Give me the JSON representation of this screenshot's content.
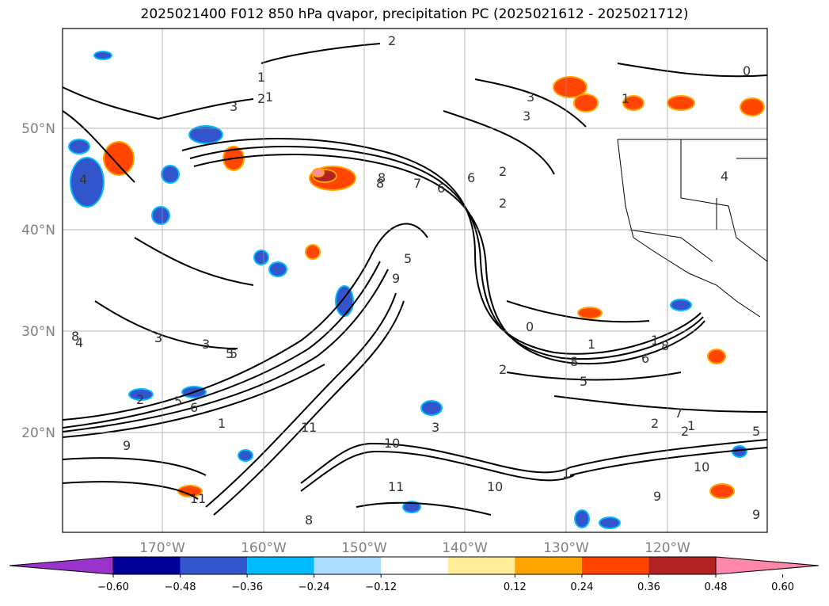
{
  "title": "2025021400 F012 850 hPa qvapor, precipitation PC (2025021612 - 2025021712)",
  "map": {
    "lat_labels": [
      "50°N",
      "40°N",
      "30°N",
      "20°N"
    ],
    "lon_labels": [
      "170°W",
      "160°W",
      "150°W",
      "140°W",
      "130°W",
      "120°W"
    ],
    "contour_labels": [
      "2",
      "1",
      "1",
      "2",
      "3",
      "0",
      "3",
      "1",
      "2",
      "2",
      "3",
      "4",
      "5",
      "6",
      "7",
      "8",
      "8",
      "9",
      "5",
      "6",
      "2",
      "5",
      "2",
      "3",
      "3",
      "4",
      "5",
      "3",
      "2",
      "1",
      "1",
      "0",
      "1",
      "8",
      "8",
      "6",
      "5",
      "5",
      "7",
      "3",
      "2",
      "1",
      "1",
      "9",
      "11",
      "10",
      "10",
      "11",
      "9",
      "8",
      "10",
      "11",
      "9",
      "8",
      "6",
      "4"
    ]
  },
  "colorbar": {
    "tick_labels": [
      "−0.60",
      "−0.48",
      "−0.36",
      "−0.24",
      "−0.12",
      "0.12",
      "0.24",
      "0.36",
      "0.48",
      "0.60"
    ],
    "colors": [
      "#9933cc",
      "#000099",
      "#3355cc",
      "#00bbff",
      "#aaddff",
      "#ffffff",
      "#ffee99",
      "#ffa500",
      "#ff4500",
      "#b22222",
      "#ff88aa"
    ]
  },
  "chart_data": {
    "type": "heatmap",
    "title": "2025021400 F012 850 hPa qvapor, precipitation PC (2025021612 - 2025021712)",
    "variable_contours": "850 hPa qvapor",
    "variable_fill": "precipitation PC",
    "lon_ticks": [
      "170°W",
      "160°W",
      "150°W",
      "140°W",
      "130°W",
      "120°W"
    ],
    "lat_ticks": [
      "50°N",
      "40°N",
      "30°N",
      "20°N"
    ],
    "colorbar_levels": [
      -0.6,
      -0.48,
      -0.36,
      -0.24,
      -0.12,
      0.12,
      0.24,
      0.36,
      0.48,
      0.6
    ],
    "grid": true
  }
}
